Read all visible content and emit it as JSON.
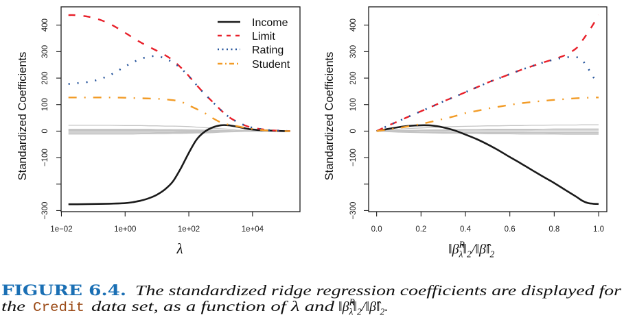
{
  "chart_data": [
    {
      "type": "line",
      "panel": "left",
      "title": "",
      "xlabel": "λ",
      "ylabel": "Standardized Coefficients",
      "x_scale": "log10",
      "x_units_note": "x values are log10(λ)",
      "xlim": [
        -2.01,
        5.49
      ],
      "ylim": [
        -304,
        469
      ],
      "grid": false,
      "x_ticks": [
        -2,
        0,
        2,
        4
      ],
      "x_tick_labels": [
        "1e−02",
        "1e+00",
        "1e+02",
        "1e+04"
      ],
      "y_ticks": [
        -300,
        -200,
        -100,
        0,
        100,
        200,
        300,
        400
      ],
      "y_tick_labels": [
        "−300",
        "",
        "−100",
        "0",
        "100",
        "200",
        "300",
        "400"
      ],
      "legend": {
        "placement": "top-right",
        "entries": [
          {
            "label": "Income",
            "color": "#1a1a1a",
            "style": "solid"
          },
          {
            "label": "Limit",
            "color": "#e8202a",
            "style": "dashed"
          },
          {
            "label": "Rating",
            "color": "#24539b",
            "style": "dotted"
          },
          {
            "label": "Student",
            "color": "#f29b26",
            "style": "dotdash"
          }
        ]
      },
      "x": [
        -1.78,
        -1.5,
        -1,
        -0.5,
        0,
        0.25,
        0.5,
        0.75,
        1,
        1.25,
        1.5,
        1.75,
        2,
        2.25,
        2.5,
        2.75,
        3,
        3.25,
        3.5,
        3.75,
        4,
        4.5,
        5,
        5.18
      ],
      "series": [
        {
          "name": "other-1",
          "in_legend": false,
          "color": "#c4c4c4",
          "style": "thin",
          "values": [
            22,
            22,
            22,
            22,
            21,
            21,
            21,
            20,
            20,
            19,
            19,
            18,
            17,
            15,
            13,
            11,
            9,
            7,
            4,
            3,
            2,
            0,
            0,
            0
          ]
        },
        {
          "name": "other-2",
          "in_legend": false,
          "color": "#c4c4c4",
          "style": "thin",
          "values": [
            7,
            7,
            7,
            7,
            7,
            7,
            7,
            7,
            6,
            6,
            6,
            6,
            5,
            5,
            4,
            4,
            3,
            2,
            1,
            1,
            1,
            0,
            0,
            0
          ]
        },
        {
          "name": "other-3",
          "in_legend": false,
          "color": "#c4c4c4",
          "style": "thin",
          "values": [
            4,
            4,
            4,
            4,
            4,
            4,
            4,
            4,
            4,
            4,
            3,
            3,
            3,
            3,
            2,
            2,
            2,
            1,
            1,
            1,
            0,
            0,
            0,
            0
          ]
        },
        {
          "name": "other-4",
          "in_legend": false,
          "color": "#c4c4c4",
          "style": "thin",
          "values": [
            1,
            1,
            1,
            1,
            1,
            1,
            1,
            1,
            1,
            1,
            1,
            1,
            1,
            1,
            1,
            1,
            0,
            0,
            0,
            0,
            0,
            0,
            0,
            0
          ]
        },
        {
          "name": "other-5",
          "in_legend": false,
          "color": "#c4c4c4",
          "style": "thin",
          "values": [
            -3,
            -3,
            -3,
            -3,
            -3,
            -3,
            -3,
            -3,
            -3,
            -3,
            -3,
            -2,
            -2,
            -2,
            -2,
            -2,
            -1,
            -1,
            -1,
            0,
            0,
            0,
            0,
            0
          ]
        },
        {
          "name": "other-6",
          "in_legend": false,
          "color": "#c4c4c4",
          "style": "thin",
          "values": [
            -7,
            -7,
            -7,
            -7,
            -7,
            -7,
            -7,
            -7,
            -6,
            -6,
            -6,
            -6,
            -5,
            -5,
            -4,
            -4,
            -3,
            -2,
            -1,
            -1,
            -1,
            0,
            0,
            0
          ]
        },
        {
          "name": "other-7",
          "in_legend": false,
          "color": "#c4c4c4",
          "style": "thin",
          "values": [
            -11,
            -11,
            -11,
            -11,
            -11,
            -11,
            -10,
            -10,
            -10,
            -10,
            -9,
            -9,
            -8,
            -7,
            -7,
            -6,
            -4,
            -3,
            -2,
            -1,
            -1,
            0,
            0,
            0
          ]
        },
        {
          "name": "Income",
          "in_legend": true,
          "color": "#1a1a1a",
          "style": "solid",
          "values": [
            -276,
            -276,
            -275,
            -274,
            -272,
            -268,
            -262,
            -253,
            -240,
            -220,
            -190,
            -140,
            -82,
            -31,
            -2,
            14,
            22,
            22,
            17,
            11,
            6,
            2,
            0,
            0
          ]
        },
        {
          "name": "Limit",
          "in_legend": true,
          "color": "#e8202a",
          "style": "dashed",
          "values": [
            438,
            437,
            428,
            406,
            371,
            352,
            334,
            318,
            303,
            287,
            267,
            240,
            208,
            173,
            140,
            110,
            80,
            54,
            36,
            22,
            13,
            4,
            1,
            0
          ]
        },
        {
          "name": "Rating",
          "in_legend": true,
          "color": "#24539b",
          "style": "dotted",
          "values": [
            178,
            181,
            189,
            210,
            244,
            260,
            273,
            281,
            283,
            274,
            259,
            237,
            207,
            173,
            140,
            110,
            80,
            54,
            36,
            22,
            13,
            4,
            1,
            0
          ]
        },
        {
          "name": "Student",
          "in_legend": true,
          "color": "#f29b26",
          "style": "dotdash",
          "values": [
            127,
            127,
            127,
            127,
            126,
            125,
            124,
            123,
            122,
            120,
            117,
            111,
            97,
            83,
            68,
            49,
            33,
            24,
            19,
            13,
            8,
            2,
            0,
            0
          ]
        }
      ]
    },
    {
      "type": "line",
      "panel": "right",
      "title": "",
      "xlabel": "‖β̂^R_λ‖₂/‖β̂‖₂",
      "xlabel_parts": [
        {
          "t": "‖β̂",
          "k": "base"
        },
        {
          "t": "R",
          "k": "sup"
        },
        {
          "t": "λ",
          "k": "sub"
        },
        {
          "t": "‖",
          "k": "base"
        },
        {
          "t": "2",
          "k": "sub"
        },
        {
          "t": "/‖β̂‖",
          "k": "base"
        },
        {
          "t": "2",
          "k": "sub"
        }
      ],
      "ylabel": "Standardized Coefficients",
      "x_scale": "linear",
      "xlim": [
        -0.036,
        1.037
      ],
      "ylim": [
        -304,
        469
      ],
      "grid": false,
      "x_ticks": [
        0,
        0.2,
        0.4,
        0.6,
        0.8,
        1.0
      ],
      "x_tick_labels": [
        "0.0",
        "0.2",
        "0.4",
        "0.6",
        "0.8",
        "1.0"
      ],
      "y_ticks": [
        -300,
        -200,
        -100,
        0,
        100,
        200,
        300,
        400
      ],
      "y_tick_labels": [
        "−300",
        "",
        "−100",
        "0",
        "100",
        "200",
        "300",
        "400"
      ],
      "x": [
        0,
        0.05,
        0.1,
        0.15,
        0.2,
        0.25,
        0.3,
        0.35,
        0.4,
        0.45,
        0.5,
        0.55,
        0.6,
        0.65,
        0.7,
        0.75,
        0.8,
        0.85,
        0.9,
        0.925,
        0.95,
        0.975,
        1
      ],
      "series": [
        {
          "name": "other-1",
          "in_legend": false,
          "color": "#c4c4c4",
          "style": "thin",
          "values": [
            0,
            4,
            7,
            10,
            12,
            14,
            16,
            17,
            18,
            19,
            20,
            20,
            21,
            21,
            22,
            22,
            23,
            23,
            23,
            24,
            24,
            24,
            24
          ]
        },
        {
          "name": "other-2",
          "in_legend": false,
          "color": "#c4c4c4",
          "style": "thin",
          "values": [
            0,
            1,
            2,
            3,
            4,
            5,
            5,
            6,
            6,
            6,
            7,
            7,
            7,
            7,
            7,
            7,
            8,
            8,
            8,
            8,
            8,
            8,
            8
          ]
        },
        {
          "name": "other-3",
          "in_legend": false,
          "color": "#c4c4c4",
          "style": "thin",
          "values": [
            0,
            1,
            2,
            2,
            3,
            3,
            4,
            4,
            5,
            5,
            5,
            5,
            5,
            5,
            5,
            6,
            6,
            6,
            6,
            6,
            6,
            6,
            6
          ]
        },
        {
          "name": "other-4",
          "in_legend": false,
          "color": "#c4c4c4",
          "style": "thin",
          "values": [
            0,
            0,
            0,
            0,
            1,
            1,
            1,
            1,
            1,
            1,
            1,
            1,
            1,
            1,
            1,
            1,
            1,
            1,
            1,
            1,
            1,
            1,
            1
          ]
        },
        {
          "name": "other-5",
          "in_legend": false,
          "color": "#c4c4c4",
          "style": "thin",
          "values": [
            0,
            -1,
            -2,
            -2,
            -3,
            -3,
            -3,
            -4,
            -4,
            -4,
            -4,
            -4,
            -4,
            -4,
            -5,
            -5,
            -5,
            -5,
            -5,
            -5,
            -5,
            -5,
            -5
          ]
        },
        {
          "name": "other-6",
          "in_legend": false,
          "color": "#c4c4c4",
          "style": "thin",
          "values": [
            0,
            -1,
            -2,
            -3,
            -4,
            -5,
            -5,
            -6,
            -6,
            -6,
            -7,
            -7,
            -7,
            -7,
            -7,
            -7,
            -8,
            -8,
            -8,
            -8,
            -8,
            -8,
            -8
          ]
        },
        {
          "name": "other-7",
          "in_legend": false,
          "color": "#c4c4c4",
          "style": "thin",
          "values": [
            0,
            -2,
            -4,
            -5,
            -6,
            -7,
            -8,
            -8,
            -9,
            -9,
            -10,
            -10,
            -10,
            -11,
            -11,
            -11,
            -11,
            -12,
            -12,
            -12,
            -12,
            -12,
            -12
          ]
        },
        {
          "name": "Income",
          "in_legend": false,
          "color": "#1a1a1a",
          "style": "solid",
          "values": [
            0,
            8,
            15,
            20,
            22,
            21,
            14,
            3,
            -13,
            -30,
            -50,
            -73,
            -98,
            -122,
            -147,
            -172,
            -196,
            -222,
            -248,
            -262,
            -271,
            -274,
            -275
          ]
        },
        {
          "name": "Limit",
          "in_legend": false,
          "color": "#e8202a",
          "style": "dashed",
          "values": [
            0,
            20,
            38,
            57,
            75,
            93,
            112,
            129,
            147,
            165,
            183,
            199,
            215,
            231,
            245,
            259,
            272,
            287,
            313,
            340,
            370,
            402,
            438
          ]
        },
        {
          "name": "Rating",
          "in_legend": false,
          "color": "#24539b",
          "style": "dotted",
          "values": [
            0,
            20,
            38,
            57,
            75,
            93,
            112,
            129,
            147,
            165,
            183,
            199,
            215,
            231,
            245,
            259,
            270,
            278,
            279,
            268,
            240,
            205,
            178
          ]
        },
        {
          "name": "Student",
          "in_legend": false,
          "color": "#f29b26",
          "style": "dotdash",
          "values": [
            0,
            6,
            12,
            19,
            27,
            36,
            46,
            56,
            68,
            76,
            85,
            92,
            99,
            105,
            110,
            114,
            118,
            121,
            124,
            125,
            126,
            127,
            127
          ]
        }
      ]
    }
  ],
  "caption": {
    "label": "FIGURE 6.4.",
    "label_color": "#1a6fb4",
    "line1": "The standardized ridge regression coefficients are displayed for",
    "line2_before": "the",
    "dataset": "Credit",
    "dataset_color": "#9b4a16",
    "line2_after": "data set, as a function of λ and",
    "math_parts": [
      {
        "t": "‖β̂",
        "k": "base"
      },
      {
        "t": "R",
        "k": "sup"
      },
      {
        "t": "λ",
        "k": "sub"
      },
      {
        "t": "‖",
        "k": "base"
      },
      {
        "t": "2",
        "k": "sub"
      },
      {
        "t": "/‖β̂‖",
        "k": "base"
      },
      {
        "t": "2",
        "k": "sub"
      },
      {
        "t": ".",
        "k": "base"
      }
    ]
  }
}
